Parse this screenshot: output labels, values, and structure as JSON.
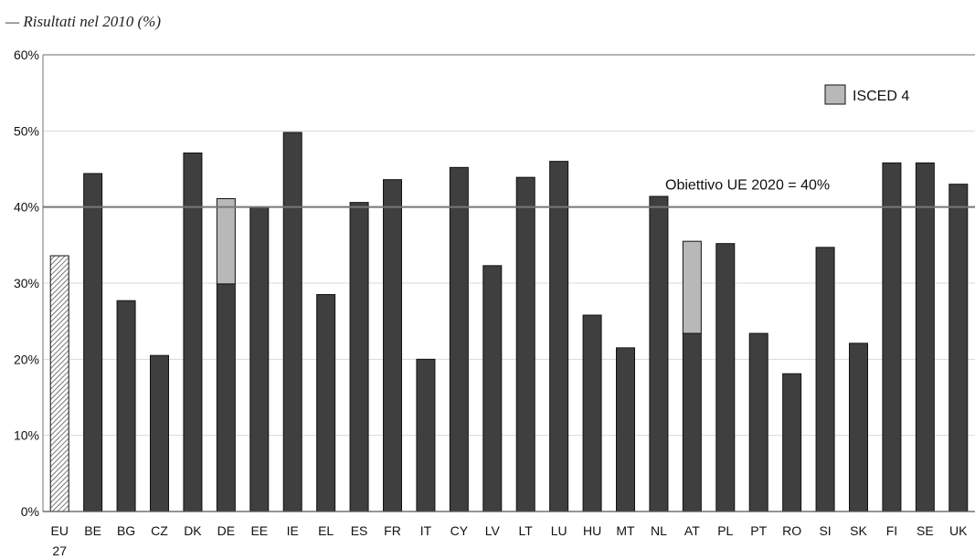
{
  "subtitle": "— Risultati nel 2010 (%)",
  "chart_data": {
    "type": "bar",
    "stacked": true,
    "categories": [
      "EU 27",
      "BE",
      "BG",
      "CZ",
      "DK",
      "DE",
      "EE",
      "IE",
      "EL",
      "ES",
      "FR",
      "IT",
      "CY",
      "LV",
      "LT",
      "LU",
      "HU",
      "MT",
      "NL",
      "AT",
      "PL",
      "PT",
      "RO",
      "SI",
      "SK",
      "FI",
      "SE",
      "UK"
    ],
    "category_lines": [
      [
        "EU",
        "27"
      ],
      [
        "BE"
      ],
      [
        "BG"
      ],
      [
        "CZ"
      ],
      [
        "DK"
      ],
      [
        "DE"
      ],
      [
        "EE"
      ],
      [
        "IE"
      ],
      [
        "EL"
      ],
      [
        "ES"
      ],
      [
        "FR"
      ],
      [
        "IT"
      ],
      [
        "CY"
      ],
      [
        "LV"
      ],
      [
        "LT"
      ],
      [
        "LU"
      ],
      [
        "HU"
      ],
      [
        "MT"
      ],
      [
        "NL"
      ],
      [
        "AT"
      ],
      [
        "PL"
      ],
      [
        "PT"
      ],
      [
        "RO"
      ],
      [
        "SI"
      ],
      [
        "SK"
      ],
      [
        "FI"
      ],
      [
        "SE"
      ],
      [
        "UK"
      ]
    ],
    "series": [
      {
        "key": "main",
        "values": [
          33.6,
          44.4,
          27.7,
          20.5,
          47.1,
          29.9,
          40.0,
          49.8,
          28.5,
          40.6,
          43.6,
          20.0,
          45.2,
          32.3,
          43.9,
          46.0,
          25.8,
          21.5,
          41.4,
          23.4,
          35.2,
          23.4,
          18.1,
          34.7,
          22.1,
          45.8,
          45.8,
          43.0
        ]
      },
      {
        "key": "isced4",
        "name": "ISCED 4",
        "values": [
          0,
          0,
          0,
          0,
          0,
          11.2,
          0,
          0,
          0,
          0,
          0,
          0,
          0,
          0,
          0,
          0,
          0,
          0,
          0,
          12.1,
          0,
          0,
          0,
          0,
          0,
          0,
          0,
          0
        ]
      }
    ],
    "y_ticks": [
      "0%",
      "10%",
      "20%",
      "30%",
      "40%",
      "50%",
      "60%"
    ],
    "ylim": [
      0,
      60
    ],
    "reference_line": {
      "value": 40,
      "label": "Obiettivo UE 2020 = 40%"
    },
    "legend_position": "top-right",
    "grid": true,
    "colors": {
      "main": "#3f3f3f",
      "isced4": "#b8b8b8",
      "eu_hatch": "#555555",
      "grid": "#d9d9d9",
      "target": "#777777"
    }
  }
}
